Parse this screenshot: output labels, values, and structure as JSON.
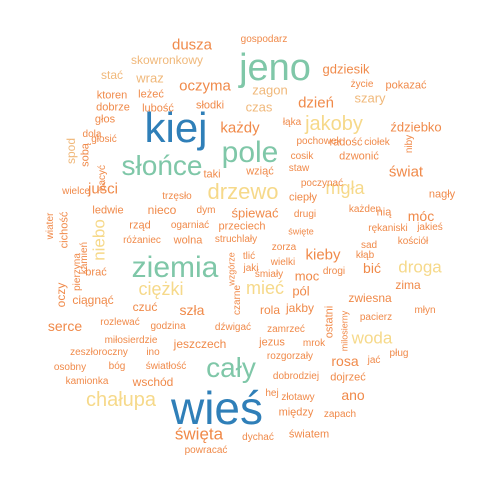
{
  "palette": {
    "tan": "#f0b87a",
    "orange": "#f08a4a",
    "blue": "#2f7fb8",
    "teal": "#7fc7a8",
    "yellow": "#f6d98a"
  },
  "words": [
    {
      "text": "wieś",
      "color": "blue"
    },
    {
      "text": "kiej",
      "color": "blue"
    },
    {
      "text": "jeno",
      "color": "teal"
    },
    {
      "text": "ziemia",
      "color": "teal"
    },
    {
      "text": "słońce",
      "color": "teal"
    },
    {
      "text": "pole",
      "color": "teal"
    },
    {
      "text": "cały",
      "color": "teal"
    },
    {
      "text": "drzewo",
      "color": "yellow"
    },
    {
      "text": "chałupa",
      "color": "yellow"
    },
    {
      "text": "jakoby",
      "color": "yellow"
    },
    {
      "text": "ciężki",
      "color": "yellow"
    },
    {
      "text": "mgła",
      "color": "yellow"
    },
    {
      "text": "droga",
      "color": "yellow"
    },
    {
      "text": "mieć",
      "color": "yellow"
    },
    {
      "text": "niebo",
      "color": "yellow"
    },
    {
      "text": "woda",
      "color": "yellow"
    },
    {
      "text": "święta",
      "color": "orange"
    },
    {
      "text": "dusza",
      "color": "orange"
    },
    {
      "text": "oczyma",
      "color": "orange"
    },
    {
      "text": "dzień",
      "color": "orange"
    },
    {
      "text": "każdy",
      "color": "orange"
    },
    {
      "text": "świat",
      "color": "orange"
    },
    {
      "text": "juści",
      "color": "orange"
    },
    {
      "text": "kieby",
      "color": "orange"
    },
    {
      "text": "serce",
      "color": "orange"
    },
    {
      "text": "móc",
      "color": "orange"
    },
    {
      "text": "bić",
      "color": "orange"
    },
    {
      "text": "rosa",
      "color": "orange"
    },
    {
      "text": "ano",
      "color": "orange"
    },
    {
      "text": "śpiewać",
      "color": "orange"
    },
    {
      "text": "gdziesik",
      "color": "orange"
    },
    {
      "text": "ździebko",
      "color": "orange"
    },
    {
      "text": "szary",
      "color": "tan"
    },
    {
      "text": "czas",
      "color": "tan"
    },
    {
      "text": "wraz",
      "color": "tan"
    },
    {
      "text": "zagon",
      "color": "tan"
    },
    {
      "text": "stać",
      "color": "tan"
    },
    {
      "text": "skowronkowy",
      "color": "tan"
    },
    {
      "text": "gospodarz",
      "color": "orange"
    },
    {
      "text": "ktoren",
      "color": "orange"
    },
    {
      "text": "leżeć",
      "color": "orange"
    },
    {
      "text": "pokazać",
      "color": "orange"
    },
    {
      "text": "życie",
      "color": "orange"
    },
    {
      "text": "dobrze",
      "color": "orange"
    },
    {
      "text": "lubość",
      "color": "orange"
    },
    {
      "text": "słodki",
      "color": "orange"
    },
    {
      "text": "głos",
      "color": "orange"
    },
    {
      "text": "łąka",
      "color": "orange"
    },
    {
      "text": "dola",
      "color": "orange"
    },
    {
      "text": "głosić",
      "color": "orange"
    },
    {
      "text": "pochowek",
      "color": "orange"
    },
    {
      "text": "ciołek",
      "color": "orange"
    },
    {
      "text": "niby",
      "color": "orange"
    },
    {
      "text": "spod",
      "color": "tan"
    },
    {
      "text": "sobą",
      "color": "orange"
    },
    {
      "text": "taki",
      "color": "orange"
    },
    {
      "text": "wziąć",
      "color": "orange"
    },
    {
      "text": "cosik",
      "color": "orange"
    },
    {
      "text": "dzwonić",
      "color": "orange"
    },
    {
      "text": "radość",
      "color": "orange"
    },
    {
      "text": "staw",
      "color": "orange"
    },
    {
      "text": "poczynać",
      "color": "orange"
    },
    {
      "text": "bacyć",
      "color": "orange"
    },
    {
      "text": "wielce",
      "color": "orange"
    },
    {
      "text": "trzęsło",
      "color": "orange"
    },
    {
      "text": "ciepły",
      "color": "orange"
    },
    {
      "text": "nagły",
      "color": "orange"
    },
    {
      "text": "każden",
      "color": "orange"
    },
    {
      "text": "ledwie",
      "color": "orange"
    },
    {
      "text": "nieco",
      "color": "orange"
    },
    {
      "text": "dym",
      "color": "orange"
    },
    {
      "text": "drugi",
      "color": "orange"
    },
    {
      "text": "nią",
      "color": "orange"
    },
    {
      "text": "rękaniski",
      "color": "orange"
    },
    {
      "text": "jakieś",
      "color": "orange"
    },
    {
      "text": "wiater",
      "color": "orange"
    },
    {
      "text": "cichość",
      "color": "orange"
    },
    {
      "text": "rząd",
      "color": "orange"
    },
    {
      "text": "ogarniać",
      "color": "orange"
    },
    {
      "text": "przeciech",
      "color": "orange"
    },
    {
      "text": "święte",
      "color": "orange"
    },
    {
      "text": "kościół",
      "color": "orange"
    },
    {
      "text": "różaniec",
      "color": "orange"
    },
    {
      "text": "wolna",
      "color": "orange"
    },
    {
      "text": "struchlały",
      "color": "orange"
    },
    {
      "text": "zorza",
      "color": "orange"
    },
    {
      "text": "sad",
      "color": "orange"
    },
    {
      "text": "kamień",
      "color": "orange"
    },
    {
      "text": "tlić",
      "color": "orange"
    },
    {
      "text": "wielki",
      "color": "orange"
    },
    {
      "text": "drogi",
      "color": "orange"
    },
    {
      "text": "kłąb",
      "color": "orange"
    },
    {
      "text": "jaki",
      "color": "orange"
    },
    {
      "text": "moc",
      "color": "orange"
    },
    {
      "text": "pól",
      "color": "orange"
    },
    {
      "text": "brać",
      "color": "orange"
    },
    {
      "text": "wzgórze",
      "color": "orange"
    },
    {
      "text": "jakby",
      "color": "orange"
    },
    {
      "text": "zwiesna",
      "color": "orange"
    },
    {
      "text": "zima",
      "color": "orange"
    },
    {
      "text": "ciągnąć",
      "color": "orange"
    },
    {
      "text": "czuć",
      "color": "orange"
    },
    {
      "text": "szła",
      "color": "orange"
    },
    {
      "text": "rola",
      "color": "orange"
    },
    {
      "text": "czarne",
      "color": "orange"
    },
    {
      "text": "śmiały",
      "color": "orange"
    },
    {
      "text": "ostatni",
      "color": "orange"
    },
    {
      "text": "oczy",
      "color": "orange"
    },
    {
      "text": "rozlewać",
      "color": "orange"
    },
    {
      "text": "godzina",
      "color": "orange"
    },
    {
      "text": "dźwigać",
      "color": "orange"
    },
    {
      "text": "zamrzeć",
      "color": "orange"
    },
    {
      "text": "milosierny",
      "color": "orange"
    },
    {
      "text": "pacierz",
      "color": "orange"
    },
    {
      "text": "młyn",
      "color": "orange"
    },
    {
      "text": "miłosierdzie",
      "color": "orange"
    },
    {
      "text": "jeszczech",
      "color": "orange"
    },
    {
      "text": "jezus",
      "color": "orange"
    },
    {
      "text": "mrok",
      "color": "orange"
    },
    {
      "text": "zeszłoroczny",
      "color": "orange"
    },
    {
      "text": "ino",
      "color": "orange"
    },
    {
      "text": "rozgorzały",
      "color": "orange"
    },
    {
      "text": "jać",
      "color": "orange"
    },
    {
      "text": "pług",
      "color": "orange"
    },
    {
      "text": "osobny",
      "color": "orange"
    },
    {
      "text": "bóg",
      "color": "orange"
    },
    {
      "text": "światłość",
      "color": "orange"
    },
    {
      "text": "dobrodziej",
      "color": "orange"
    },
    {
      "text": "kamionka",
      "color": "orange"
    },
    {
      "text": "wschód",
      "color": "orange"
    },
    {
      "text": "dojrzeć",
      "color": "orange"
    },
    {
      "text": "hej",
      "color": "orange"
    },
    {
      "text": "złotawy",
      "color": "orange"
    },
    {
      "text": "między",
      "color": "orange"
    },
    {
      "text": "zapach",
      "color": "orange"
    },
    {
      "text": "światem",
      "color": "orange"
    },
    {
      "text": "dychać",
      "color": "orange"
    },
    {
      "text": "powracać",
      "color": "orange"
    },
    {
      "text": "pierzyna",
      "color": "orange"
    }
  ]
}
